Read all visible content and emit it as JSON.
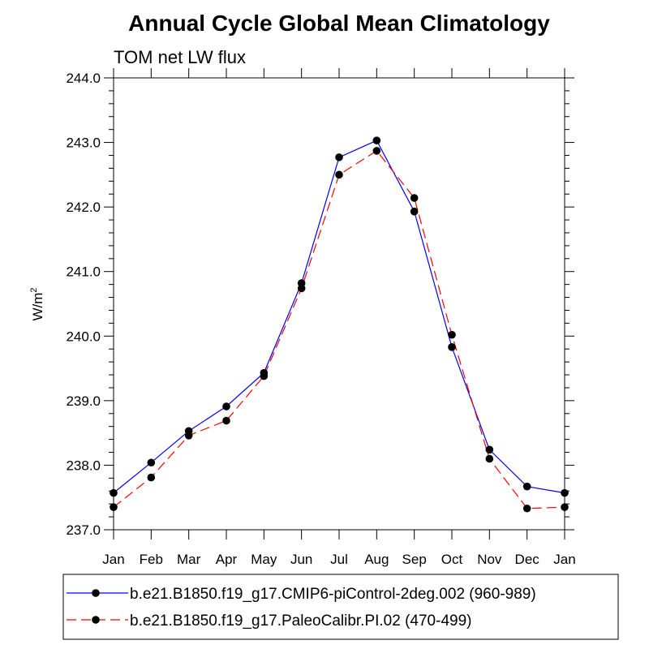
{
  "chart_data": {
    "type": "line",
    "title": "Annual Cycle Global Mean Climatology",
    "subtitle": "TOM net LW flux",
    "ylabel": "W/m",
    "ylabel_superscript": "2",
    "xlabel": "",
    "categories": [
      "Jan",
      "Feb",
      "Mar",
      "Apr",
      "May",
      "Jun",
      "Jul",
      "Aug",
      "Sep",
      "Oct",
      "Nov",
      "Dec",
      "Jan"
    ],
    "ylim": [
      237.0,
      244.0
    ],
    "yticks": [
      "237.0",
      "238.0",
      "239.0",
      "240.0",
      "241.0",
      "242.0",
      "243.0",
      "244.0"
    ],
    "series": [
      {
        "name": "b.e21.B1850.f19_g17.CMIP6-piControl-2deg.002 (960-989)",
        "color": "#0000ff",
        "dash": "solid",
        "values": [
          237.57,
          238.04,
          238.53,
          238.91,
          239.43,
          240.82,
          242.77,
          243.03,
          241.93,
          239.83,
          238.24,
          237.67,
          237.57
        ]
      },
      {
        "name": "b.e21.B1850.f19_g17.PaleoCalibr.PI.02 (470-499)",
        "color": "#ff0000",
        "dash": "dashed",
        "values": [
          237.35,
          237.81,
          238.46,
          238.69,
          239.38,
          240.74,
          242.5,
          242.87,
          242.14,
          240.02,
          238.1,
          237.33,
          237.35
        ]
      }
    ],
    "legend_position": "bottom"
  }
}
